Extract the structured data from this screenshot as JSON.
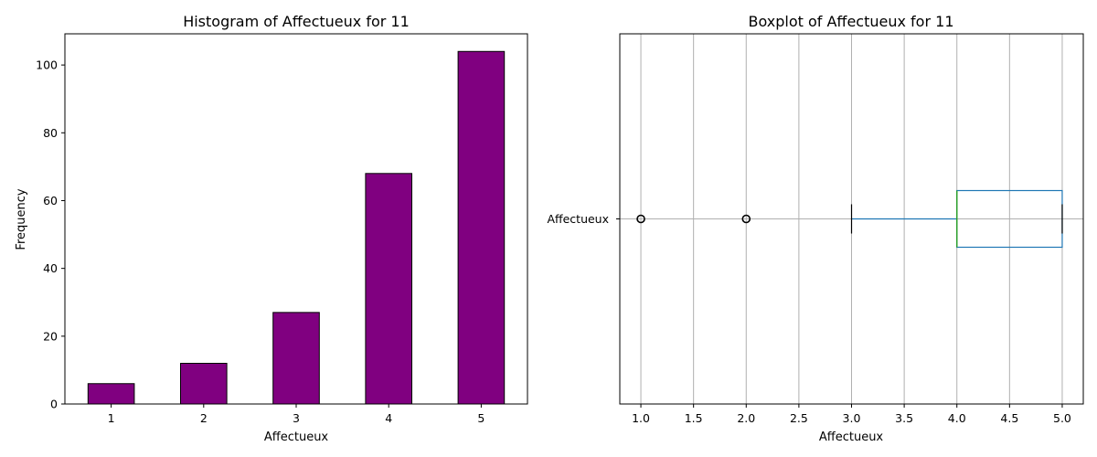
{
  "chart_data": [
    {
      "type": "bar",
      "title": "Histogram of Affectueux for 11",
      "xlabel": "Affectueux",
      "ylabel": "Frequency",
      "categories": [
        "1",
        "2",
        "3",
        "4",
        "5"
      ],
      "values": [
        6,
        12,
        27,
        68,
        104
      ],
      "ylim": [
        0,
        109.2
      ],
      "yticks": [
        "0",
        "20",
        "40",
        "60",
        "80",
        "100"
      ],
      "grid": false,
      "colors": {
        "bar": "#800080",
        "edge": "#000000"
      }
    },
    {
      "type": "box",
      "title": "Boxplot of Affectueux for 11",
      "xlabel": "Affectueux",
      "category": "Affectueux",
      "xlim": [
        0.8,
        5.2
      ],
      "xticks": [
        "1.0",
        "1.5",
        "2.0",
        "2.5",
        "3.0",
        "3.5",
        "4.0",
        "4.5",
        "5.0"
      ],
      "whisker_low": 3,
      "q1": 4,
      "median": 4,
      "q3": 5,
      "whisker_high": 5,
      "outliers": [
        1,
        2
      ],
      "grid": true,
      "colors": {
        "box": "#1f77b4",
        "median": "#2ca02c",
        "whisker": "#1f77b4",
        "cap": "#000000",
        "grid": "#b0b0b0"
      }
    }
  ]
}
